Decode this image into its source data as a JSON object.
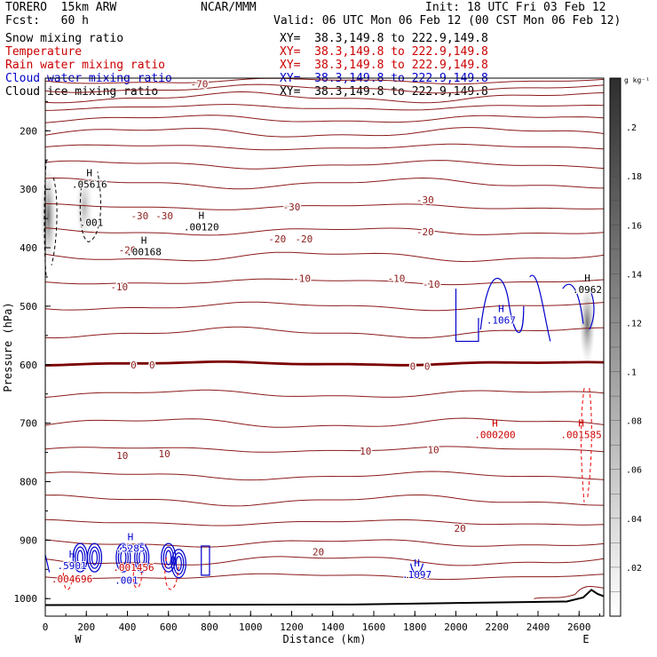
{
  "header": {
    "model": "TORERO  15km ARW",
    "org": "NCAR/MMM",
    "init": "Init: 18 UTC Fri 03 Feb 12",
    "fcst": "Fcst:   60 h",
    "valid": "Valid: 06 UTC Mon 06 Feb 12 (00 CST Mon 06 Feb 12)"
  },
  "fields": [
    {
      "label": "Snow mixing ratio",
      "xy": "XY=  38.3,149.8 to 222.9,149.8",
      "color": "#000000"
    },
    {
      "label": "Temperature",
      "xy": "XY=  38.3,149.8 to 222.9,149.8",
      "color": "#cc0000"
    },
    {
      "label": "Rain water mixing ratio",
      "xy": "XY=  38.3,149.8 to 222.9,149.8",
      "color": "#cc0000"
    },
    {
      "label": "Cloud water mixing ratio",
      "xy": "XY=  38.3,149.8 to 222.9,149.8",
      "color": "#0000cc"
    },
    {
      "label": "Cloud ice mixing ratio",
      "xy": "XY=  38.3,149.8 to 222.9,149.8",
      "color": "#000000"
    }
  ],
  "chart_data": {
    "type": "contour cross-section",
    "xlabel": "Distance (km)",
    "ylabel": "Pressure (hPa)",
    "x_ticks": [
      0,
      200,
      400,
      600,
      800,
      1000,
      1200,
      1400,
      1600,
      1800,
      2000,
      2200,
      2400,
      2600
    ],
    "x_range": [
      0,
      2720
    ],
    "y_ticks": [
      200,
      300,
      400,
      500,
      600,
      700,
      800,
      900,
      1000
    ],
    "y_range": [
      110,
      1030
    ],
    "x_end_labels": {
      "left": "W",
      "right": "E"
    },
    "colorbar": {
      "unit": "g kg⁻¹",
      "ticks": [
        ".02",
        ".04",
        ".06",
        ".08",
        ".1",
        ".12",
        ".14",
        ".16",
        ".18",
        ".2"
      ],
      "range": [
        0,
        0.22
      ]
    },
    "temperature_labels": [
      {
        "text": "-70",
        "x": 750,
        "p": 120
      },
      {
        "text": "-30",
        "x": 460,
        "p": 345
      },
      {
        "text": "-30",
        "x": 580,
        "p": 345
      },
      {
        "text": "-30",
        "x": 1200,
        "p": 330
      },
      {
        "text": "-30",
        "x": 1850,
        "p": 318
      },
      {
        "text": "-20",
        "x": 400,
        "p": 404
      },
      {
        "text": "-20",
        "x": 1130,
        "p": 385
      },
      {
        "text": "-20",
        "x": 1260,
        "p": 385
      },
      {
        "text": "-20",
        "x": 1850,
        "p": 373
      },
      {
        "text": "-10",
        "x": 360,
        "p": 467
      },
      {
        "text": "-10",
        "x": 1250,
        "p": 452
      },
      {
        "text": "-10",
        "x": 1710,
        "p": 452
      },
      {
        "text": "-10",
        "x": 1880,
        "p": 462
      },
      {
        "text": "0",
        "x": 430,
        "p": 600
      },
      {
        "text": "0",
        "x": 520,
        "p": 600
      },
      {
        "text": "0",
        "x": 1790,
        "p": 603
      },
      {
        "text": "0",
        "x": 1860,
        "p": 603
      },
      {
        "text": "10",
        "x": 375,
        "p": 755
      },
      {
        "text": "10",
        "x": 580,
        "p": 752
      },
      {
        "text": "10",
        "x": 1560,
        "p": 748
      },
      {
        "text": "10",
        "x": 1890,
        "p": 745
      },
      {
        "text": "20",
        "x": 1330,
        "p": 920
      },
      {
        "text": "20",
        "x": 2020,
        "p": 880
      }
    ],
    "isotherms_C": [
      -70,
      -60,
      -50,
      -40,
      -30,
      -20,
      -10,
      0,
      10,
      20
    ],
    "max_labels": [
      {
        "h": "H",
        "value": ".05616",
        "x": 215,
        "p": 290,
        "field": "snow",
        "color": "#000000"
      },
      {
        "h": "",
        "value": ".001",
        "x": 225,
        "p": 355,
        "field": "snow",
        "color": "#000000"
      },
      {
        "h": "H",
        "value": ".00168",
        "x": 480,
        "p": 405,
        "field": "ice",
        "color": "#000000"
      },
      {
        "h": "H",
        "value": ".00120",
        "x": 760,
        "p": 363,
        "field": "ice",
        "color": "#000000"
      },
      {
        "h": "H",
        "value": ".0962",
        "x": 2640,
        "p": 470,
        "field": "snow",
        "color": "#000000"
      },
      {
        "h": "H",
        "value": ".1067",
        "x": 2220,
        "p": 522,
        "field": "cloud water",
        "color": "#0000cc"
      },
      {
        "h": "H",
        "value": ".000200",
        "x": 2190,
        "p": 718,
        "field": "rain",
        "color": "#cc0000"
      },
      {
        "h": "H",
        "value": ".001585",
        "x": 2610,
        "p": 718,
        "field": "rain",
        "color": "#cc0000"
      },
      {
        "h": "H",
        "value": ".1097",
        "x": 1810,
        "p": 957,
        "field": "cloud water",
        "color": "#0000cc"
      },
      {
        "h": "H",
        "value": ".5285",
        "x": 415,
        "p": 912,
        "field": "cloud water",
        "color": "#0000cc"
      },
      {
        "h": "H",
        "value": ".5901",
        "x": 130,
        "p": 942,
        "field": "cloud water",
        "color": "#0000cc"
      },
      {
        "h": "",
        "value": ".001456",
        "x": 430,
        "p": 945,
        "field": "rain",
        "color": "#cc0000"
      },
      {
        "h": "",
        "value": ".004696",
        "x": 130,
        "p": 965,
        "field": "rain",
        "color": "#cc0000"
      },
      {
        "h": "",
        "value": ".001",
        "x": 395,
        "p": 967,
        "field": "cloud water",
        "color": "#0000cc"
      }
    ]
  },
  "colors": {
    "temperature": "#8b1a1a",
    "freezing_line": "#7a0000",
    "rain": "#ee0000",
    "cloud_water": "#0000cc",
    "snow": "#000000",
    "terrain": "#000000"
  }
}
